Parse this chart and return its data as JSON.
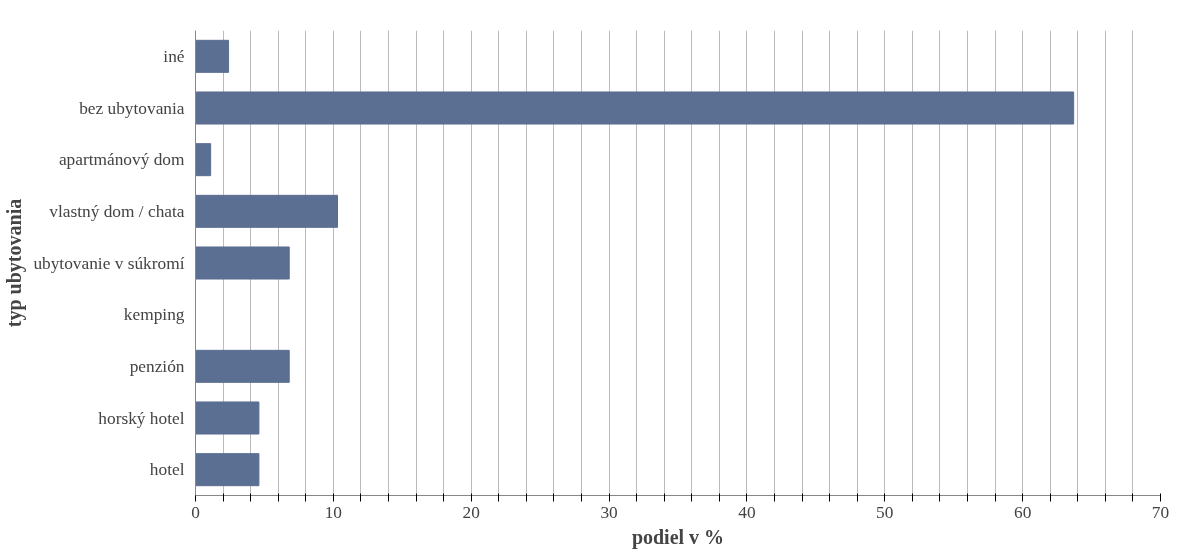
{
  "chart_data": {
    "type": "bar",
    "orientation": "horizontal",
    "xlabel": "podiel v %",
    "ylabel": "typ ubytovania",
    "categories": [
      "iné",
      "bez ubytovania",
      "apartmánový dom",
      "vlastný dom / chata",
      "ubytovanie v súkromí",
      "kemping",
      "penzión",
      "horský hotel",
      "hotel"
    ],
    "values": [
      2.4,
      63.7,
      1.1,
      10.3,
      6.8,
      0,
      6.8,
      4.6,
      4.6
    ],
    "color": "#5b6f92",
    "xlim": [
      0,
      70
    ],
    "xticks": [
      0,
      {
        "value": 2,
        "label": null
      },
      {
        "value": 4,
        "label": null
      },
      {
        "value": 6,
        "label": null
      },
      {
        "value": 8,
        "label": null
      },
      10,
      {
        "value": 12,
        "label": null
      },
      {
        "value": 14,
        "label": null
      },
      {
        "value": 16,
        "label": null
      },
      {
        "value": 18,
        "label": null
      },
      20,
      {
        "value": 22,
        "label": null
      },
      {
        "value": 24,
        "label": null
      },
      {
        "value": 26,
        "label": null
      },
      {
        "value": 28,
        "label": null
      },
      30,
      {
        "value": 32,
        "label": null
      },
      {
        "value": 34,
        "label": null
      },
      {
        "value": 36,
        "label": null
      },
      {
        "value": 38,
        "label": null
      },
      40,
      {
        "value": 42,
        "label": null
      },
      {
        "value": 44,
        "label": null
      },
      {
        "value": 46,
        "label": null
      },
      {
        "value": 48,
        "label": null
      },
      50,
      {
        "value": 52,
        "label": null
      },
      {
        "value": 54,
        "label": null
      },
      {
        "value": 56,
        "label": null
      },
      {
        "value": 58,
        "label": null
      },
      60,
      {
        "value": 62,
        "label": null
      },
      {
        "value": 64,
        "label": null
      },
      {
        "value": 66,
        "label": null
      },
      {
        "value": 68,
        "label": null
      },
      70
    ],
    "grid": "x"
  }
}
